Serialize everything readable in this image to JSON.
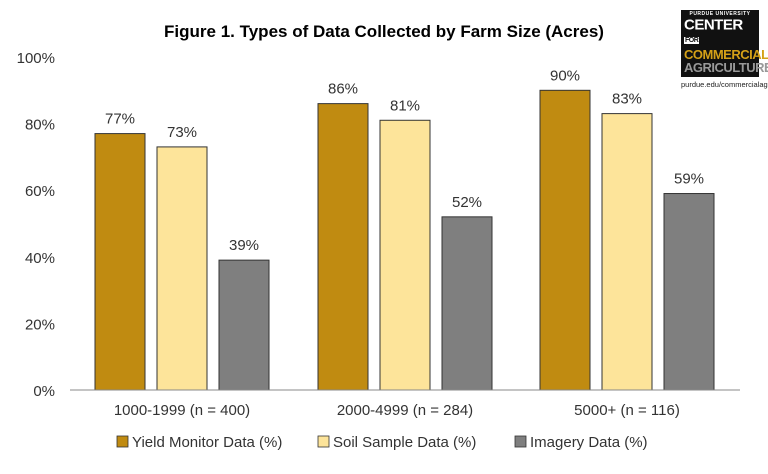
{
  "chart_data": {
    "type": "bar",
    "title": "Figure 1. Types of Data Collected by Farm Size (Acres)",
    "categories": [
      "1000-1999 (n = 400)",
      "2000-4999 (n = 284)",
      "5000+ (n = 116)"
    ],
    "series": [
      {
        "name": "Yield Monitor Data (%)",
        "values": [
          77,
          86,
          90
        ],
        "color": "#C08B11"
      },
      {
        "name": "Soil Sample Data (%)",
        "values": [
          73,
          81,
          83
        ],
        "color": "#FDE49A"
      },
      {
        "name": "Imagery Data (%)",
        "values": [
          39,
          52,
          59
        ],
        "color": "#7F7F7F"
      }
    ],
    "ylim": [
      0,
      100
    ],
    "yticks": [
      "0%",
      "20%",
      "40%",
      "60%",
      "80%",
      "100%"
    ],
    "data_label_suffix": "%",
    "grid": false,
    "legend": "bottom"
  },
  "logo": {
    "line1": "PURDUE UNIVERSITY",
    "line2": "CENTER",
    "line2b": "FOR",
    "line3": "COMMERCIAL",
    "line4": "AGRICULTURE",
    "url": "purdue.edu/commercialag"
  }
}
